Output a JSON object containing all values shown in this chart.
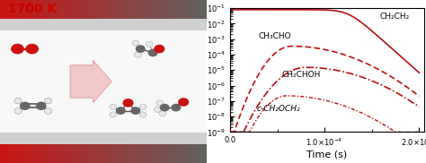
{
  "fig_width": 4.74,
  "fig_height": 1.82,
  "dpi": 100,
  "title_text": "1700 K",
  "title_color": "#cc0000",
  "title_fontsize": 10,
  "plot_color": "#bb1111",
  "xlabel": "Time (s)",
  "xlabel_fontsize": 8,
  "tick_fontsize": 6.5,
  "ylim_low": 1e-09,
  "ylim_high": 0.1,
  "xlim_low": 0.0,
  "xlim_high": 0.000205,
  "line_labels": [
    "CH₂CH₂",
    "CH₃CHO",
    "CH₂CHOH",
    "c-CH₂OCH₂"
  ],
  "bg_white": "#ffffff",
  "bg_gray_stripe": "#c8c8c8",
  "bg_middle": "#f5f5f5",
  "band_red_start": "#cc1111",
  "band_red_end": "#555555",
  "arrow_fill": "#f2c8c8",
  "arrow_edge": "#e0a8a8"
}
